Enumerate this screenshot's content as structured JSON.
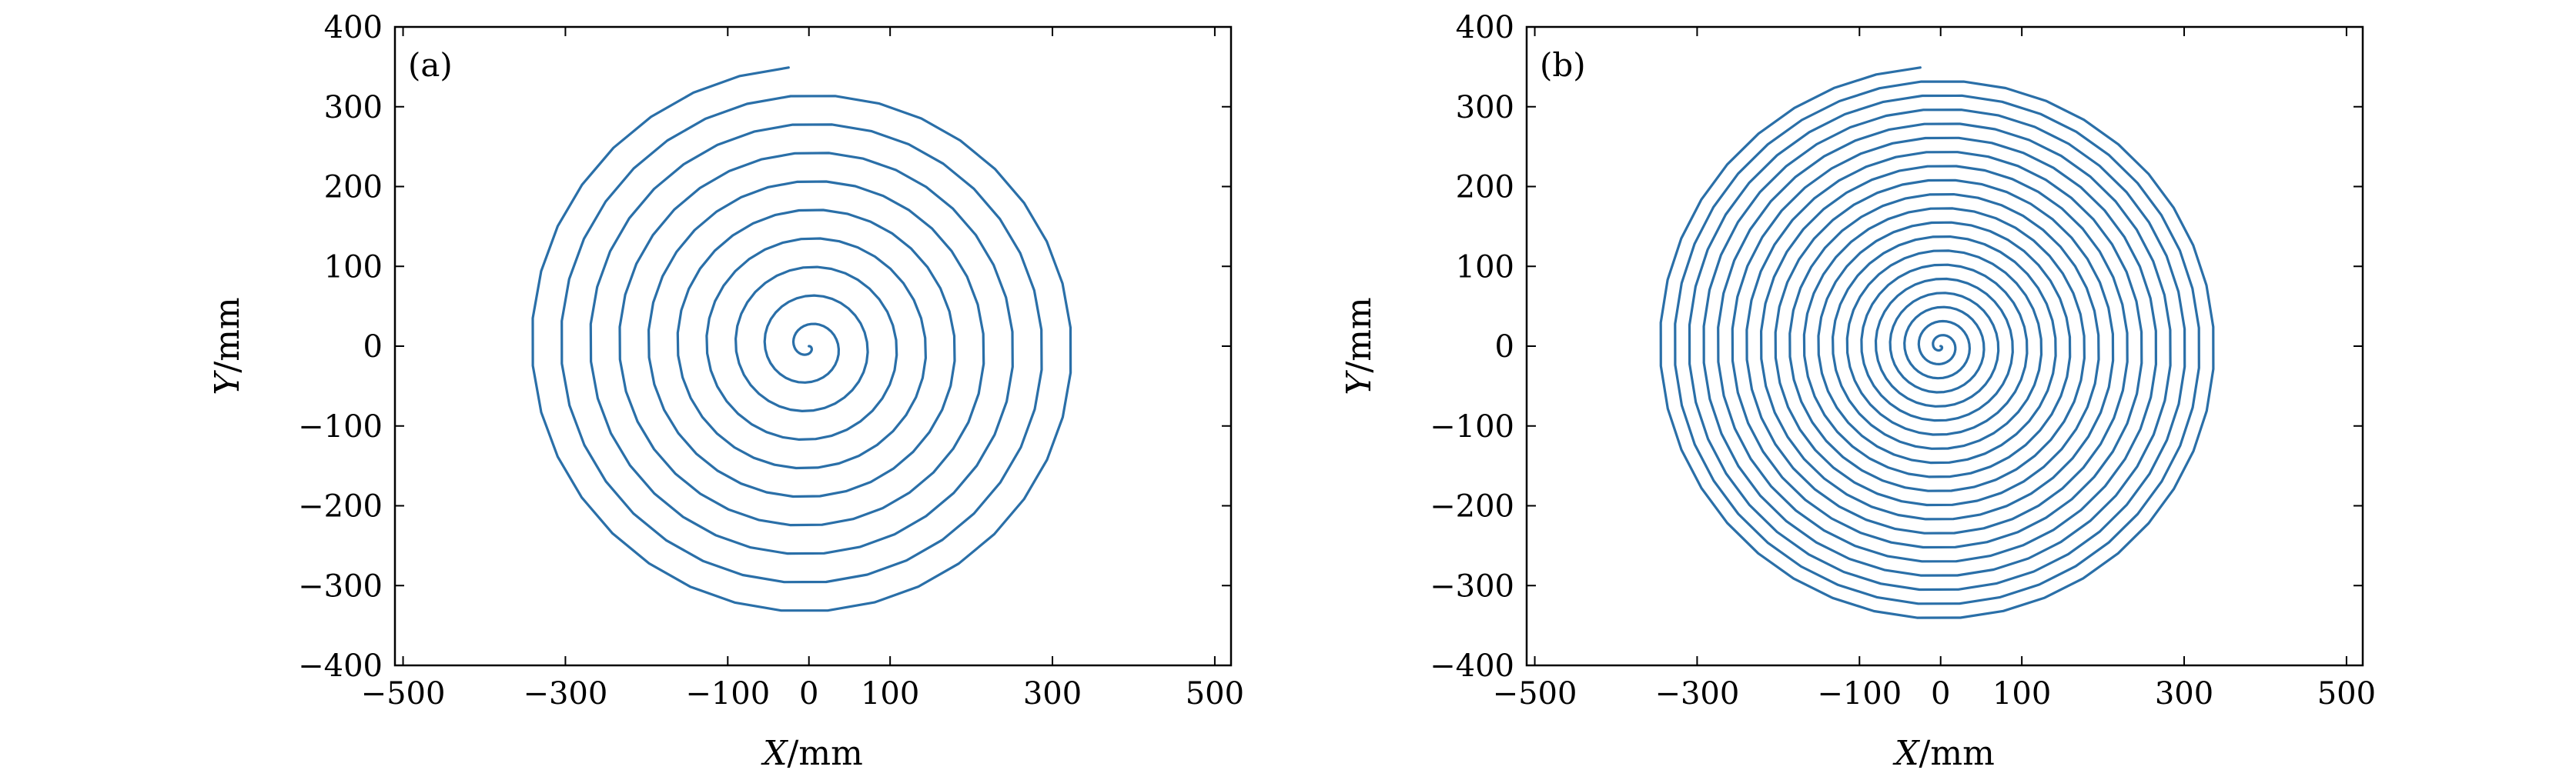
{
  "chart_data": [
    {
      "type": "line",
      "panel_label": "(a)",
      "xlabel_var": "X",
      "xlabel_unit": "/mm",
      "ylabel_var": "Y",
      "ylabel_unit": "/mm",
      "xlim": [
        -510,
        520
      ],
      "ylim": [
        -400,
        400
      ],
      "xticks": [
        -500,
        -300,
        -100,
        0,
        100,
        300,
        500
      ],
      "xtick_labels": [
        "−500",
        "−300",
        "−100",
        "0",
        "100",
        "300",
        "500"
      ],
      "yticks": [
        -400,
        -300,
        -200,
        -100,
        0,
        100,
        200,
        300,
        400
      ],
      "ytick_labels": [
        "−400",
        "−300",
        "−200",
        "−100",
        "0",
        "100",
        "200",
        "300",
        "400"
      ],
      "grid": false,
      "line_color": "#2a6fa8",
      "series": [
        {
          "shape": "archimedean-spiral",
          "center": [
            0,
            0
          ],
          "start": [
            0,
            0
          ],
          "end": [
            -25,
            348
          ],
          "r_max": 350,
          "turns": 9.75,
          "points_per_turn": 36
        }
      ]
    },
    {
      "type": "line",
      "panel_label": "(b)",
      "xlabel_var": "X",
      "xlabel_unit": "/mm",
      "ylabel_var": "Y",
      "ylabel_unit": "/mm",
      "xlim": [
        -510,
        520
      ],
      "ylim": [
        -400,
        400
      ],
      "xticks": [
        -500,
        -300,
        -100,
        0,
        100,
        300,
        500
      ],
      "xtick_labels": [
        "−500",
        "−300",
        "−100",
        "0",
        "100",
        "300",
        "500"
      ],
      "yticks": [
        -400,
        -300,
        -200,
        -100,
        0,
        100,
        200,
        300,
        400
      ],
      "ytick_labels": [
        "−400",
        "−300",
        "−200",
        "−100",
        "0",
        "100",
        "200",
        "300",
        "400"
      ],
      "grid": false,
      "line_color": "#2a6fa8",
      "series": [
        {
          "shape": "archimedean-spiral",
          "center": [
            0,
            0
          ],
          "start": [
            0,
            0
          ],
          "end": [
            -25,
            348
          ],
          "r_max": 350,
          "turns": 19.75,
          "points_per_turn": 40
        }
      ]
    }
  ]
}
